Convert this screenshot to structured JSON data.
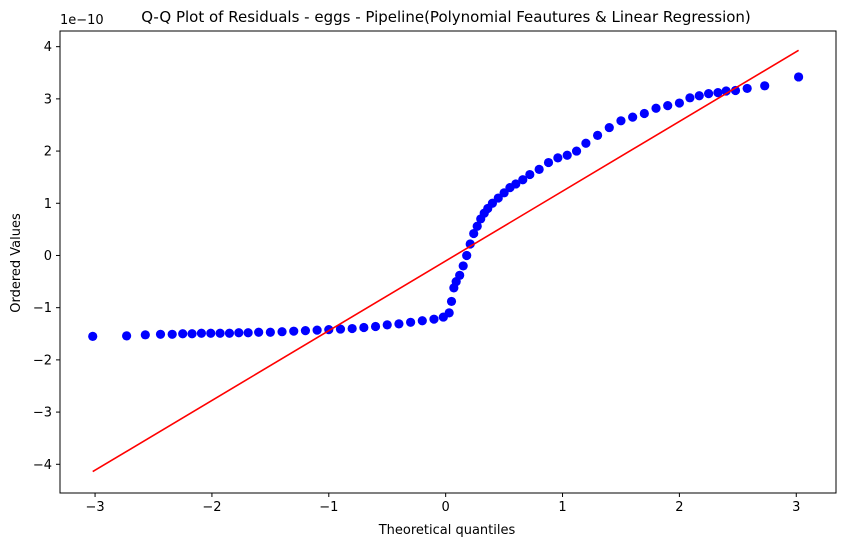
{
  "chart_data": {
    "type": "scatter",
    "title": "Q-Q Plot of Residuals - eggs  - Pipeline(Polynomial Feautures & Linear Regression)",
    "xlabel": "Theoretical quantiles",
    "ylabel": "Ordered Values",
    "y_offset_label": "1e−10",
    "xlim": [
      -3.3,
      3.34
    ],
    "ylim": [
      -4.55,
      4.3
    ],
    "grid": false,
    "xticks": [
      -3,
      -2,
      -1,
      0,
      1,
      2,
      3
    ],
    "xtick_labels": [
      "−3",
      "−2",
      "−1",
      "0",
      "1",
      "2",
      "3"
    ],
    "yticks": [
      -4,
      -3,
      -2,
      -1,
      0,
      1,
      2,
      3,
      4
    ],
    "ytick_labels": [
      "−4",
      "−3",
      "−2",
      "−1",
      "0",
      "1",
      "2",
      "3",
      "4"
    ],
    "fit_line": {
      "x": [
        -3.02,
        3.02
      ],
      "y": [
        -4.14,
        3.93
      ],
      "color": "#ff0000"
    },
    "marker_color": "#0000ff",
    "quantiles": {
      "x": [
        -3.02,
        -2.73,
        -2.57,
        -2.44,
        -2.34,
        -2.25,
        -2.17,
        -2.09,
        -2.01,
        -1.93,
        -1.85,
        -1.77,
        -1.69,
        -1.6,
        -1.5,
        -1.4,
        -1.3,
        -1.2,
        -1.1,
        -1.0,
        -0.9,
        -0.8,
        -0.7,
        -0.6,
        -0.5,
        -0.4,
        -0.3,
        -0.2,
        -0.1,
        -0.02,
        0.03,
        0.05,
        0.07,
        0.09,
        0.12,
        0.15,
        0.18,
        0.21,
        0.24,
        0.27,
        0.3,
        0.33,
        0.36,
        0.4,
        0.45,
        0.5,
        0.55,
        0.6,
        0.66,
        0.72,
        0.8,
        0.88,
        0.96,
        1.04,
        1.12,
        1.2,
        1.3,
        1.4,
        1.5,
        1.6,
        1.7,
        1.8,
        1.9,
        2.0,
        2.09,
        2.17,
        2.25,
        2.33,
        2.4,
        2.48,
        2.58,
        2.73,
        3.02
      ],
      "y": [
        -1.55,
        -1.54,
        -1.52,
        -1.51,
        -1.51,
        -1.5,
        -1.5,
        -1.49,
        -1.49,
        -1.49,
        -1.49,
        -1.48,
        -1.48,
        -1.47,
        -1.47,
        -1.46,
        -1.45,
        -1.44,
        -1.43,
        -1.42,
        -1.41,
        -1.4,
        -1.38,
        -1.36,
        -1.33,
        -1.31,
        -1.28,
        -1.25,
        -1.22,
        -1.18,
        -1.1,
        -0.88,
        -0.62,
        -0.5,
        -0.38,
        -0.2,
        0.0,
        0.22,
        0.42,
        0.56,
        0.7,
        0.81,
        0.9,
        1.0,
        1.1,
        1.2,
        1.3,
        1.37,
        1.45,
        1.55,
        1.65,
        1.78,
        1.87,
        1.92,
        2.0,
        2.15,
        2.3,
        2.45,
        2.58,
        2.65,
        2.72,
        2.82,
        2.87,
        2.92,
        3.02,
        3.06,
        3.1,
        3.12,
        3.15,
        3.16,
        3.2,
        3.25,
        3.42
      ]
    }
  }
}
